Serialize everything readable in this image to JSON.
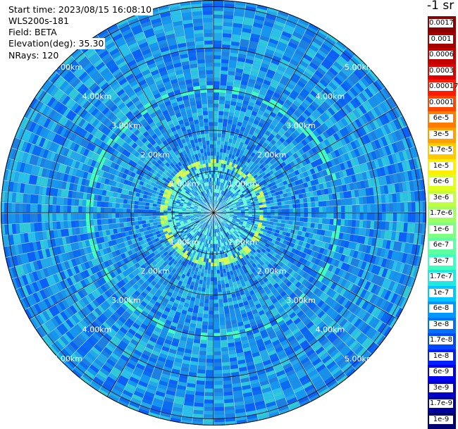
{
  "header": {
    "start_time": "Start time: 2023/08/15 16:08:10",
    "instrument": "WLS200s-181",
    "field": "Field: BETA",
    "elevation": "Elevation(deg): 35.30",
    "nrays": "NRays: 120"
  },
  "chart_data": {
    "type": "heatmap",
    "projection": "polar-ppi",
    "field": "BETA",
    "n_rays": 120,
    "range_rings_km": [
      1,
      2,
      3,
      4,
      5
    ],
    "ring_labels": [
      "1.00km",
      "2.00km",
      "3.00km",
      "4.00km",
      "5.00km"
    ],
    "spoke_step_deg": 30,
    "colorbar": {
      "title": "-1 sr",
      "labels": [
        "0.0017",
        "0.001",
        "0.0006",
        "0.0003",
        "0.00017",
        "0.0001",
        "6e-5",
        "3e-5",
        "1.7e-5",
        "1e-5",
        "6e-6",
        "3e-6",
        "1.7e-6",
        "1e-6",
        "6e-7",
        "3e-7",
        "1.7e-7",
        "1e-7",
        "6e-8",
        "3e-8",
        "1.7e-8",
        "1e-8",
        "6e-9",
        "3e-9",
        "1.7e-9",
        "1e-9"
      ],
      "colors": [
        "#8b0000",
        "#a40000",
        "#c20000",
        "#e00000",
        "#ff1a00",
        "#ff4400",
        "#ff7a00",
        "#ffa000",
        "#ffc800",
        "#ffee00",
        "#e0ff1e",
        "#bfff3f",
        "#9dff60",
        "#7dff80",
        "#5dffa0",
        "#3dffc0",
        "#1fe8e0",
        "#00c8ff",
        "#0098ff",
        "#0070ff",
        "#0048ff",
        "#0020ff",
        "#0000f0",
        "#0000c8",
        "#00009c",
        "#000070"
      ]
    },
    "annotations": [
      "aerosol ring near 1.2 km",
      "faint ring near 3.0 km"
    ]
  }
}
